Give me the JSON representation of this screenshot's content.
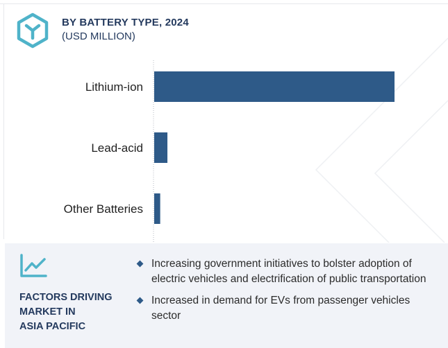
{
  "header": {
    "title": "BY BATTERY TYPE, 2024",
    "subtitle": "(USD MILLION)",
    "logo_icon": "hexagon-y-icon"
  },
  "chart_data": {
    "type": "bar",
    "orientation": "horizontal",
    "categories": [
      "Lithium-ion",
      "Lead-acid",
      "Other Batteries"
    ],
    "values": [
      100,
      5.5,
      2.5
    ],
    "bar_color": "#2e5a88",
    "xlabel": "",
    "ylabel": "",
    "xlim": [
      0,
      100
    ],
    "grid": false,
    "legend": "none"
  },
  "footer": {
    "icon": "line-chart-icon",
    "heading_lines": [
      "FACTORS DRIVING",
      "MARKET IN",
      "ASIA PACIFIC"
    ],
    "bullets": [
      "Increasing government initiatives to bolster adoption of electric vehicles and electrification of public transportation",
      "Increased in demand for EVs from passenger vehicles sector"
    ]
  },
  "colors": {
    "accent": "#2e5a88",
    "heading": "#243a5e",
    "icon_teal": "#4fb3c9",
    "footer_bg": "#f1f3f8"
  }
}
